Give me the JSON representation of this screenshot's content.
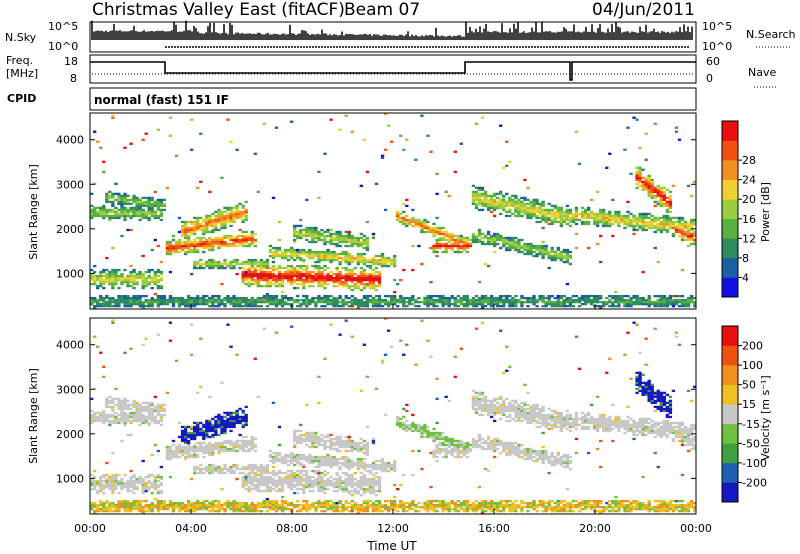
{
  "header": {
    "title": "Christmas Valley East (fitACF)",
    "beam": "Beam 07",
    "date": "04/Jun/2011"
  },
  "summary": {
    "nsky_label": "N.Sky",
    "nsearch_label": "N.Search",
    "nsky_ticks": [
      "10^5",
      "10^0"
    ],
    "freq_label": "Freq.",
    "freq_unit": "[MHz]",
    "freq_ticks": [
      18,
      8
    ],
    "nave_label": "Nave",
    "nave_ticks": [
      60,
      0
    ],
    "cpid_label": "CPID",
    "cpid_text": "normal (fast) 151 IF"
  },
  "chart_data": [
    {
      "type": "heatmap",
      "name": "power",
      "xlabel": "",
      "ylabel": "Slant Range [km]",
      "yticks": [
        1000,
        2000,
        3000,
        4000
      ],
      "ylim": [
        200,
        4600
      ],
      "colorbar_label": "Power [dB]",
      "colorbar_ticks": [
        4,
        8,
        12,
        16,
        20,
        24,
        28
      ],
      "colorbar_colors": [
        "#1010e0",
        "#1a5fa0",
        "#2f8a60",
        "#58b040",
        "#9ccc40",
        "#f0d030",
        "#f09020",
        "#f05010",
        "#e81010"
      ]
    },
    {
      "type": "heatmap",
      "name": "velocity",
      "xlabel": "Time UT",
      "ylabel": "Slant Range [km]",
      "xticks": [
        "00:00",
        "04:00",
        "08:00",
        "12:00",
        "16:00",
        "20:00",
        "00:00"
      ],
      "xlim_hours": [
        0,
        24
      ],
      "yticks": [
        1000,
        2000,
        3000,
        4000
      ],
      "ylim": [
        200,
        4600
      ],
      "colorbar_label": "Velocity [m s⁻¹]",
      "colorbar_ticks": [
        200,
        100,
        50,
        15,
        -15,
        -50,
        -100,
        -200
      ],
      "colorbar_colors": [
        "#1818c0",
        "#2060b0",
        "#40a040",
        "#70c040",
        "#c8c8c8",
        "#f0c020",
        "#f09020",
        "#f05010",
        "#e81010"
      ]
    }
  ]
}
